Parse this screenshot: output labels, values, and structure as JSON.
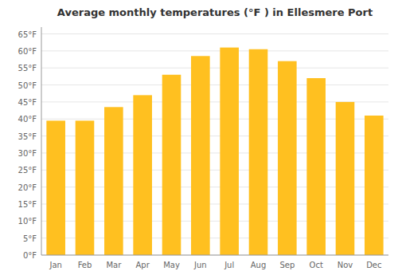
{
  "chart_data": {
    "type": "bar",
    "title": "Average monthly temperatures (°F ) in Ellesmere Port",
    "categories": [
      "Jan",
      "Feb",
      "Mar",
      "Apr",
      "May",
      "Jun",
      "Jul",
      "Aug",
      "Sep",
      "Oct",
      "Nov",
      "Dec"
    ],
    "values": [
      39.5,
      39.5,
      43.5,
      47,
      53,
      58.5,
      61,
      60.5,
      57,
      52,
      45,
      41
    ],
    "color": "#FFC020",
    "ylim": [
      0,
      67
    ],
    "yticks": [
      {
        "value": 0,
        "label": "0°F"
      },
      {
        "value": 5,
        "label": "5°F"
      },
      {
        "value": 10,
        "label": "10°F"
      },
      {
        "value": 15,
        "label": "15°F"
      },
      {
        "value": 20,
        "label": "20°F"
      },
      {
        "value": 25,
        "label": "25°F"
      },
      {
        "value": 30,
        "label": "30°F"
      },
      {
        "value": 35,
        "label": "35°F"
      },
      {
        "value": 40,
        "label": "40°F"
      },
      {
        "value": 45,
        "label": "45°F"
      },
      {
        "value": 50,
        "label": "50°F"
      },
      {
        "value": 55,
        "label": "55°F"
      },
      {
        "value": 60,
        "label": "60°F"
      },
      {
        "value": 65,
        "label": "65°F"
      }
    ],
    "grid": true
  }
}
